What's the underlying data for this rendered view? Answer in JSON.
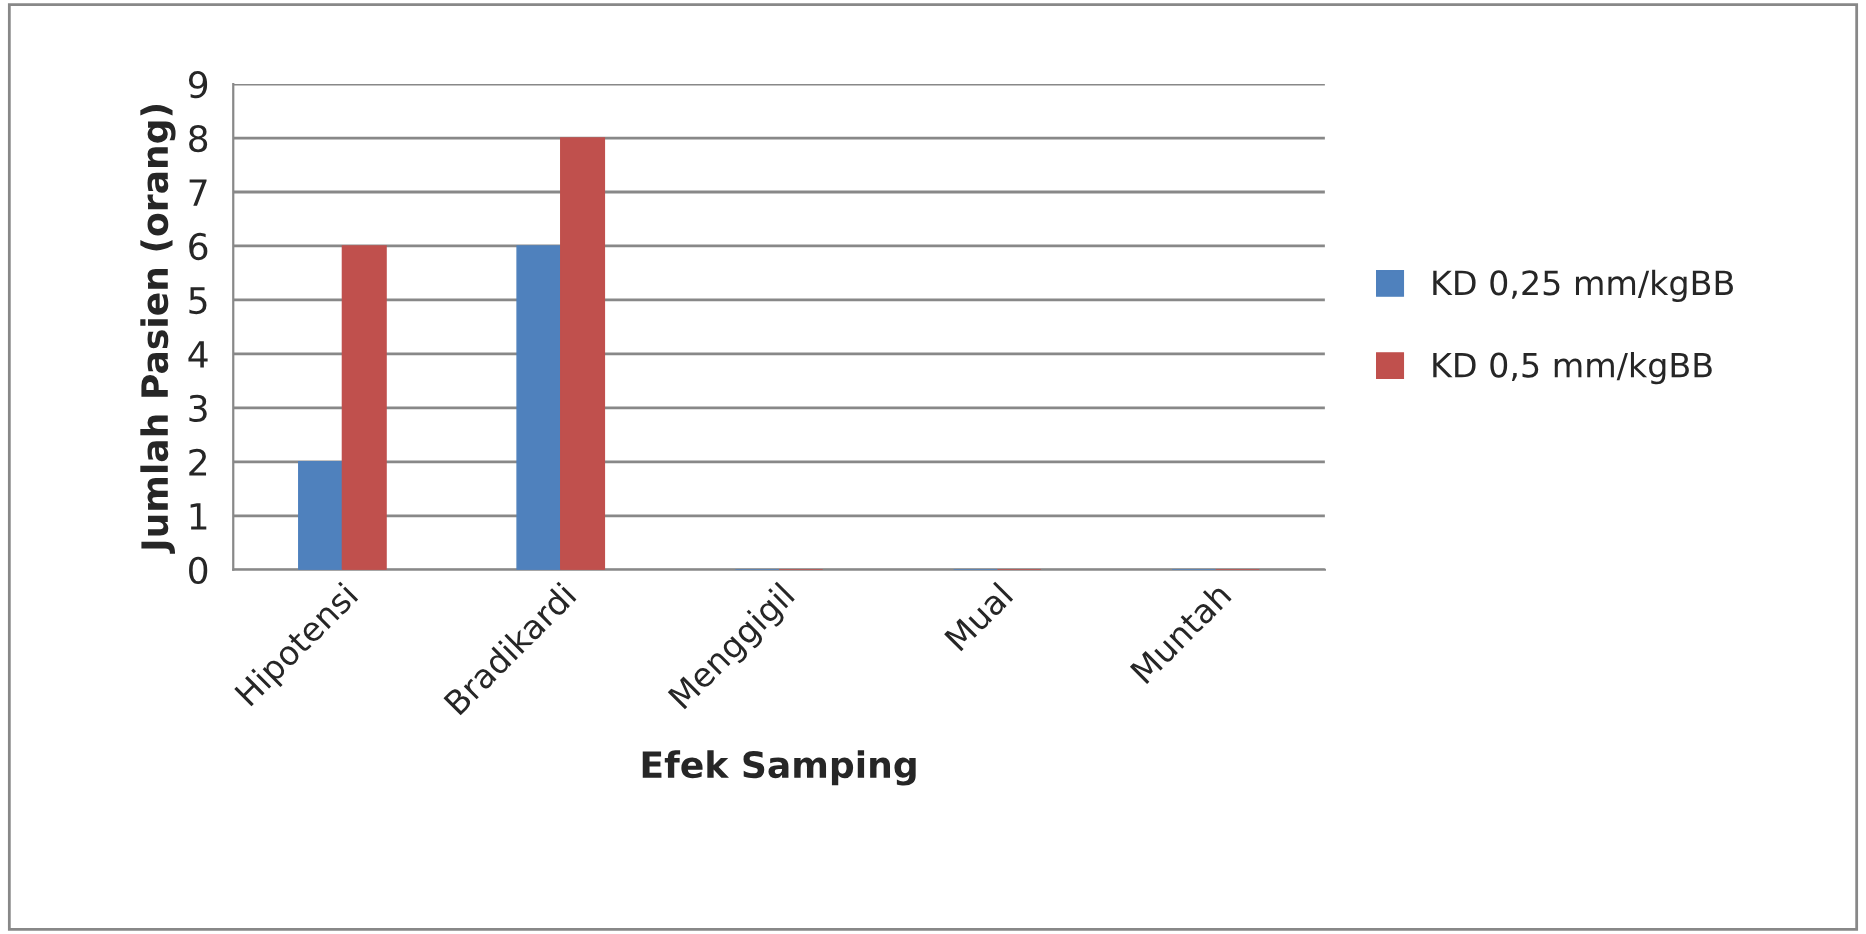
{
  "chart_data": {
    "type": "bar",
    "xlabel": "Efek Samping",
    "ylabel": "Jumlah Pasien (orang)",
    "categories": [
      "Hipotensi",
      "Bradikardi",
      "Menggigil",
      "Mual",
      "Muntah"
    ],
    "series": [
      {
        "name": "KD 0,25 mm/kgBB",
        "color": "#4f81bd",
        "values": [
          2,
          6,
          0,
          0,
          0
        ]
      },
      {
        "name": "KD 0,5 mm/kgBB",
        "color": "#c0504d",
        "values": [
          6,
          8,
          0,
          0,
          0
        ]
      }
    ],
    "ylim": [
      0,
      9
    ],
    "yticks": [
      0,
      1,
      2,
      3,
      4,
      5,
      6,
      7,
      8,
      9
    ],
    "grid": "y",
    "legend": "right"
  }
}
